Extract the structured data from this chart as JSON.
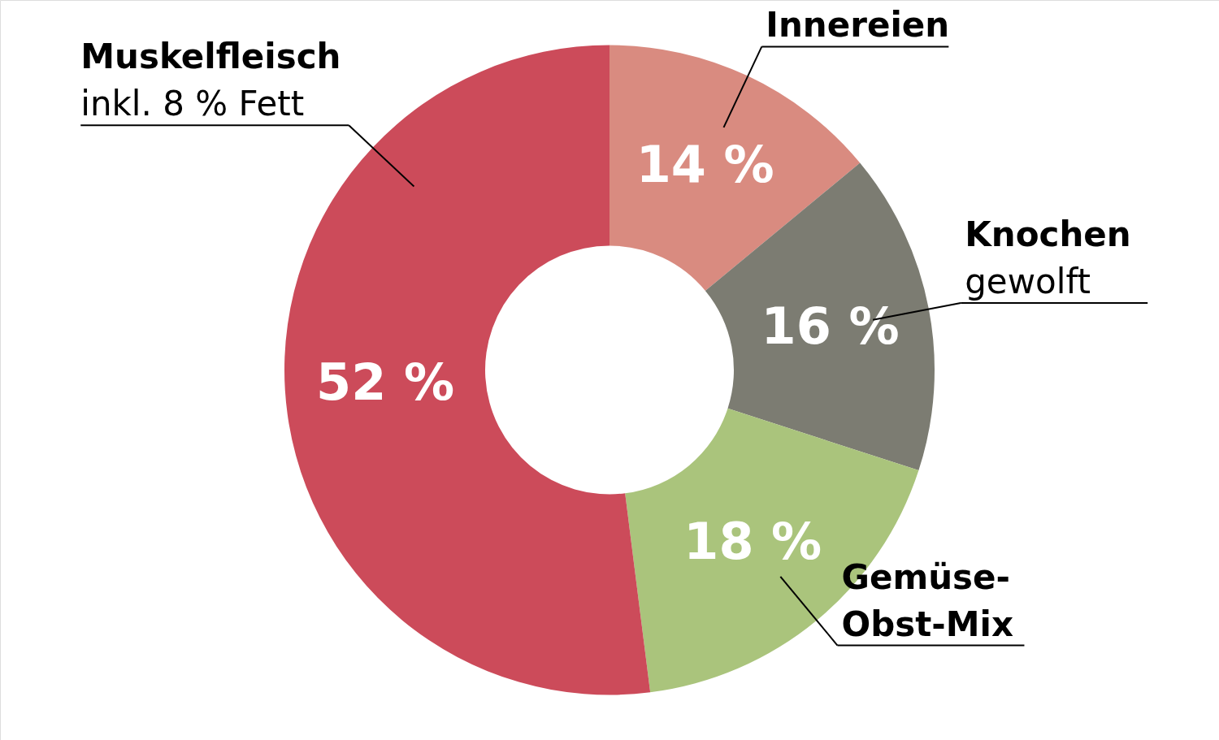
{
  "chart_data": {
    "type": "donut",
    "categories": [
      "Innereien",
      "Knochen",
      "Gemüse-Obst-Mix",
      "Muskelfleisch"
    ],
    "values": [
      14,
      16,
      18,
      52
    ],
    "value_labels": [
      "14 %",
      "16 %",
      "18 %",
      "52 %"
    ],
    "colors": [
      "#d98b80",
      "#7c7c72",
      "#aac47c",
      "#cc4b5a"
    ],
    "annotations": [
      {
        "text": "gewolft",
        "x": "Knochen"
      },
      {
        "text": "inkl. 8 % Fett",
        "x": "Muskelfleisch"
      }
    ]
  }
}
